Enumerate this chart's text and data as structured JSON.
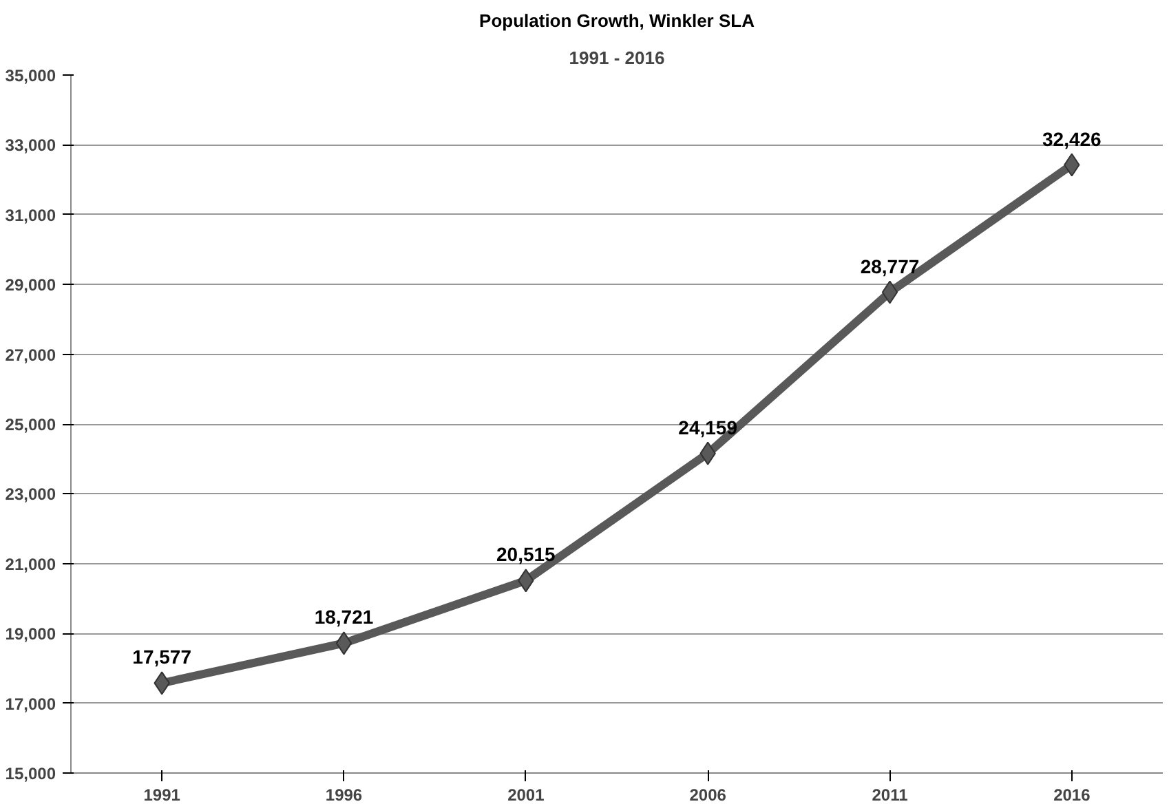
{
  "chart_data": {
    "type": "line",
    "title": "Population Growth, Winkler SLA",
    "subtitle": "1991 - 2016",
    "categories": [
      "1991",
      "1996",
      "2001",
      "2006",
      "2011",
      "2016"
    ],
    "series": [
      {
        "color": "#595959",
        "values": [
          17577,
          18721,
          20515,
          24159,
          28777,
          32426
        ],
        "value_labels": [
          "17,577",
          "18,721",
          "20,515",
          "24,159",
          "28,777",
          "32,426"
        ]
      }
    ],
    "ylim": [
      15000,
      35000
    ],
    "yticks": [
      {
        "value": 15000,
        "label": "15,000"
      },
      {
        "value": 17000,
        "label": "17,000"
      },
      {
        "value": 19000,
        "label": "19,000"
      },
      {
        "value": 21000,
        "label": "21,000"
      },
      {
        "value": 23000,
        "label": "23,000"
      },
      {
        "value": 25000,
        "label": "25,000"
      },
      {
        "value": 27000,
        "label": "27,000"
      },
      {
        "value": 29000,
        "label": "29,000"
      },
      {
        "value": 31000,
        "label": "31,000"
      },
      {
        "value": 33000,
        "label": "33,000"
      },
      {
        "value": 35000,
        "label": "35,000"
      }
    ],
    "grid": "y",
    "marker": "diamond",
    "line_style": "solid"
  }
}
